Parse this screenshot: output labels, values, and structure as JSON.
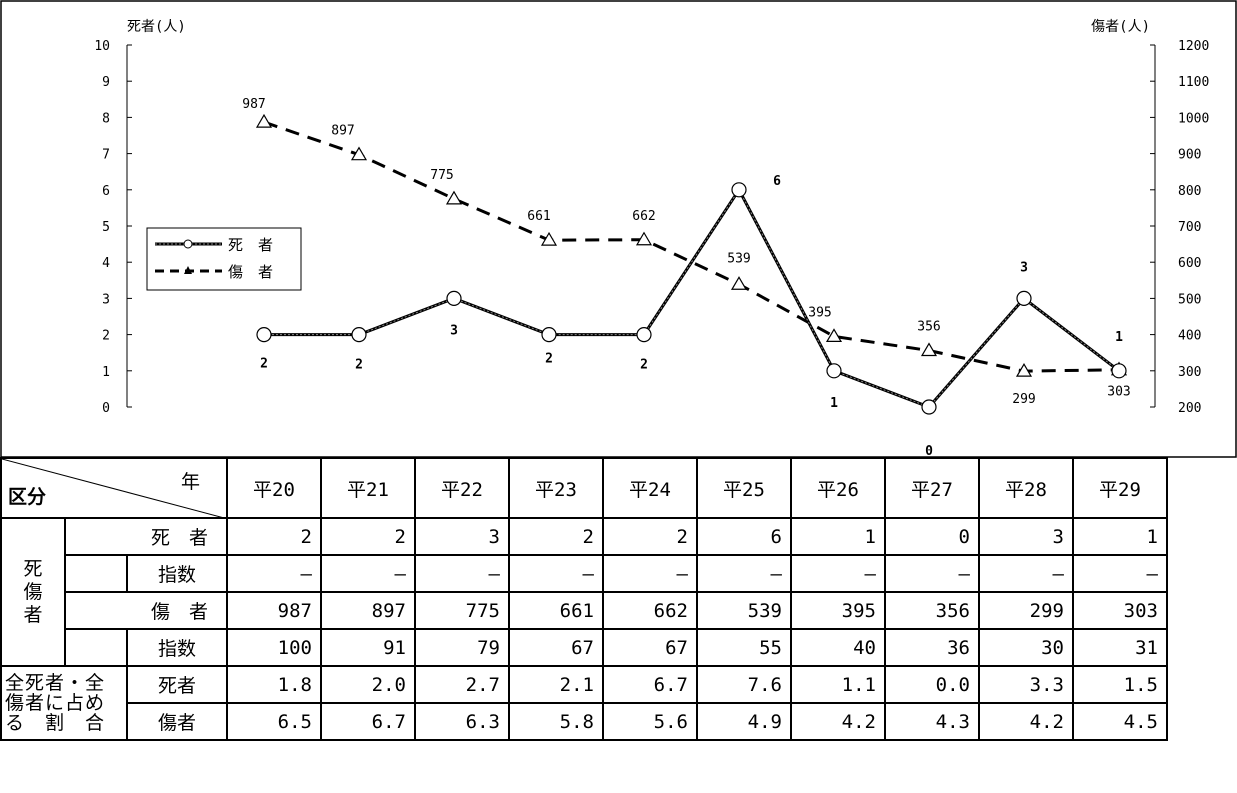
{
  "chart_data": {
    "type": "line",
    "categories": [
      "平20",
      "平21",
      "平22",
      "平23",
      "平24",
      "平25",
      "平26",
      "平27",
      "平28",
      "平29"
    ],
    "left_axis": {
      "title": "死者(人)",
      "range": [
        0,
        10
      ],
      "ticks": [
        "0",
        "1",
        "2",
        "3",
        "4",
        "5",
        "6",
        "7",
        "8",
        "9",
        "10"
      ]
    },
    "right_axis": {
      "title": "傷者(人)",
      "range": [
        200,
        1200
      ],
      "ticks": [
        "200",
        "300",
        "400",
        "500",
        "600",
        "700",
        "800",
        "900",
        "1000",
        "1100",
        "1200"
      ]
    },
    "legend": {
      "placement": "left",
      "entries": [
        "死　者",
        "傷　者"
      ]
    },
    "series": [
      {
        "name": "死　者",
        "axis": "left",
        "marker": "circle",
        "style": "solid",
        "values": [
          2,
          2,
          3,
          2,
          2,
          6,
          1,
          0,
          3,
          1
        ],
        "labels": [
          "2",
          "2",
          "3",
          "2",
          "2",
          "6",
          "1",
          "0",
          "3",
          "1"
        ]
      },
      {
        "name": "傷　者",
        "axis": "right",
        "marker": "triangle",
        "style": "dashed",
        "values": [
          987,
          897,
          775,
          661,
          662,
          539,
          395,
          356,
          299,
          303
        ],
        "labels": [
          "987",
          "897",
          "775",
          "661",
          "662",
          "539",
          "395",
          "356",
          "299",
          "303"
        ]
      }
    ]
  },
  "table": {
    "header_year": "年",
    "header_kubun": "区分",
    "years": [
      "平20",
      "平21",
      "平22",
      "平23",
      "平24",
      "平25",
      "平26",
      "平27",
      "平28",
      "平29"
    ],
    "group_label": [
      "死",
      "傷",
      "者"
    ],
    "death_label": "死　者",
    "death_values": [
      "2",
      "2",
      "3",
      "2",
      "2",
      "6",
      "1",
      "0",
      "3",
      "1"
    ],
    "index_label": "指数",
    "death_index": [
      "—",
      "—",
      "—",
      "—",
      "—",
      "—",
      "—",
      "—",
      "—",
      "—"
    ],
    "injury_label": "傷　者",
    "injury_values": [
      "987",
      "897",
      "775",
      "661",
      "662",
      "539",
      "395",
      "356",
      "299",
      "303"
    ],
    "injury_index": [
      "100",
      "91",
      "79",
      "67",
      "67",
      "55",
      "40",
      "36",
      "30",
      "31"
    ],
    "share_label": [
      "全死者・全",
      "傷者に占め",
      "る　割　合"
    ],
    "share_death_label": "死者",
    "share_death": [
      "1.8",
      "2.0",
      "2.7",
      "2.1",
      "6.7",
      "7.6",
      "1.1",
      "0.0",
      "3.3",
      "1.5"
    ],
    "share_injury_label": "傷者",
    "share_injury": [
      "6.5",
      "6.7",
      "6.3",
      "5.8",
      "5.6",
      "4.9",
      "4.2",
      "4.3",
      "4.2",
      "4.5"
    ]
  }
}
